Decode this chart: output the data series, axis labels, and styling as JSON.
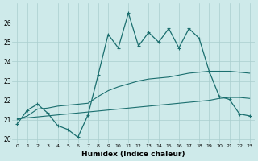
{
  "xlabel": "Humidex (Indice chaleur)",
  "xlim": [
    -0.5,
    23.5
  ],
  "ylim": [
    19.8,
    27.0
  ],
  "yticks": [
    20,
    21,
    22,
    23,
    24,
    25,
    26
  ],
  "xticks": [
    0,
    1,
    2,
    3,
    4,
    5,
    6,
    7,
    8,
    9,
    10,
    11,
    12,
    13,
    14,
    15,
    16,
    17,
    18,
    19,
    20,
    21,
    22,
    23
  ],
  "background_color": "#ceeaea",
  "grid_color": "#aacece",
  "line_color": "#1a6e6e",
  "line1_x": [
    0,
    1,
    2,
    3,
    4,
    5,
    6,
    7,
    8,
    9,
    10,
    11,
    12,
    13,
    14,
    15,
    16,
    17,
    18,
    19,
    20,
    21,
    22,
    23
  ],
  "line1_y": [
    20.8,
    21.5,
    21.8,
    21.35,
    20.7,
    20.5,
    20.1,
    21.25,
    23.3,
    25.4,
    24.7,
    26.5,
    24.8,
    25.5,
    25.0,
    25.7,
    24.7,
    25.7,
    25.2,
    23.5,
    22.2,
    22.05,
    21.3,
    21.2
  ],
  "line2_x": [
    0,
    1,
    2,
    3,
    4,
    5,
    6,
    7,
    8,
    9,
    10,
    11,
    12,
    13,
    14,
    15,
    16,
    17,
    18,
    19,
    20,
    21,
    22,
    23
  ],
  "line2_y": [
    21.0,
    21.2,
    21.55,
    21.6,
    21.7,
    21.75,
    21.8,
    21.85,
    22.2,
    22.5,
    22.7,
    22.85,
    23.0,
    23.1,
    23.15,
    23.2,
    23.3,
    23.4,
    23.45,
    23.5,
    23.5,
    23.5,
    23.45,
    23.4
  ],
  "line3_x": [
    0,
    1,
    2,
    3,
    4,
    5,
    6,
    7,
    8,
    9,
    10,
    11,
    12,
    13,
    14,
    15,
    16,
    17,
    18,
    19,
    20,
    21,
    22,
    23
  ],
  "line3_y": [
    21.05,
    21.1,
    21.15,
    21.2,
    21.25,
    21.3,
    21.35,
    21.4,
    21.45,
    21.5,
    21.55,
    21.6,
    21.65,
    21.7,
    21.75,
    21.8,
    21.85,
    21.9,
    21.95,
    22.0,
    22.1,
    22.15,
    22.15,
    22.1
  ]
}
